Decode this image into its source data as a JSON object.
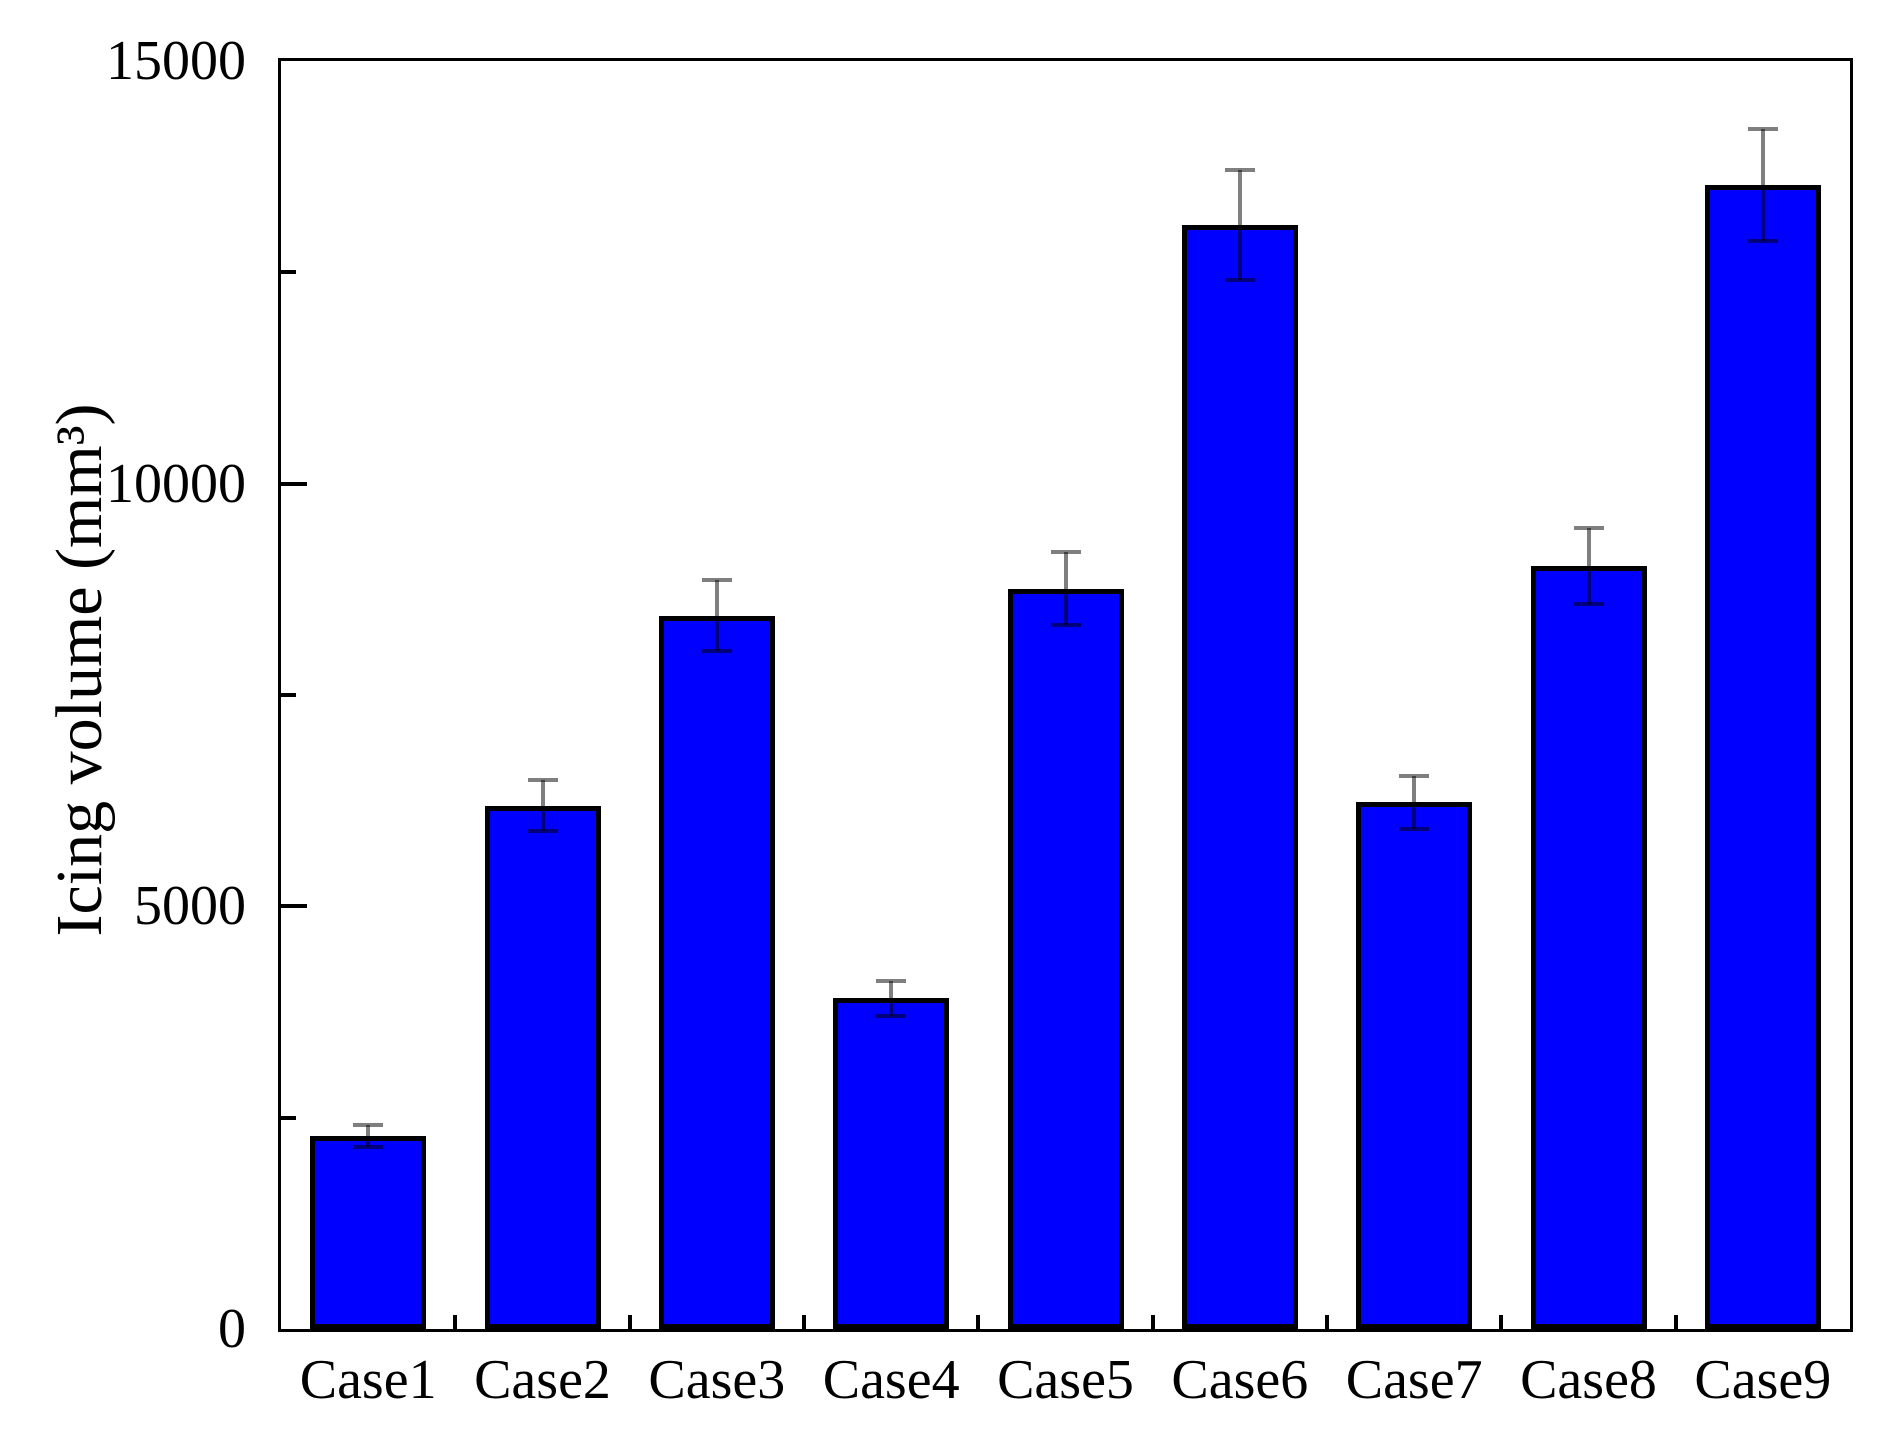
{
  "chart_data": {
    "type": "bar",
    "title": "",
    "categories": [
      "Case1",
      "Case2",
      "Case3",
      "Case4",
      "Case5",
      "Case6",
      "Case7",
      "Case8",
      "Case9"
    ],
    "values": [
      2280,
      6190,
      8440,
      3910,
      8760,
      13060,
      6230,
      9030,
      13530
    ],
    "errors": [
      130,
      300,
      420,
      210,
      435,
      650,
      310,
      450,
      665
    ],
    "xlabel": "",
    "ylabel": "Icing volume (mm³)",
    "ylim": [
      0,
      15000
    ],
    "y_major_ticks": [
      0,
      5000,
      10000,
      15000
    ],
    "y_tick_labels": [
      "0",
      "5000",
      "10000",
      "15000"
    ],
    "y_minor_ticks": [
      2500,
      7500,
      12500
    ],
    "grid": false,
    "legend": false,
    "colors": {
      "bar_fill": "#0000ff",
      "bar_border": "#000000",
      "error_bar": "#7f7f7f",
      "axis": "#000000",
      "background": "#ffffff",
      "text": "#000000"
    }
  }
}
